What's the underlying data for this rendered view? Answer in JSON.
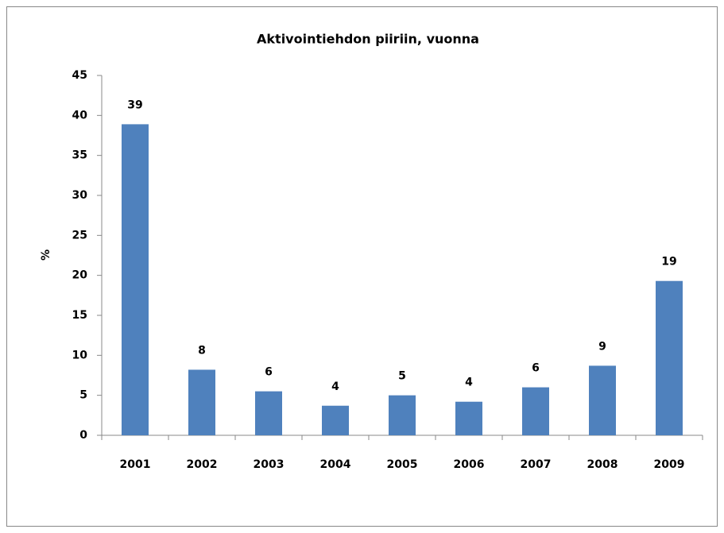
{
  "chart_data": {
    "type": "bar",
    "title": "Aktivointiehdon piiriin, vuonna",
    "ylabel": "%",
    "categories": [
      "2001",
      "2002",
      "2003",
      "2004",
      "2005",
      "2006",
      "2007",
      "2008",
      "2009"
    ],
    "values": [
      38.9,
      8.2,
      5.5,
      3.7,
      5.0,
      4.2,
      6.0,
      8.7,
      19.3
    ],
    "value_labels": [
      "39",
      "8",
      "6",
      "4",
      "5",
      "4",
      "6",
      "9",
      "19"
    ],
    "color": "#4f81bd",
    "ylim": [
      0,
      45
    ],
    "yticks": [
      0,
      5,
      10,
      15,
      20,
      25,
      30,
      35,
      40,
      45
    ],
    "grid": false
  }
}
